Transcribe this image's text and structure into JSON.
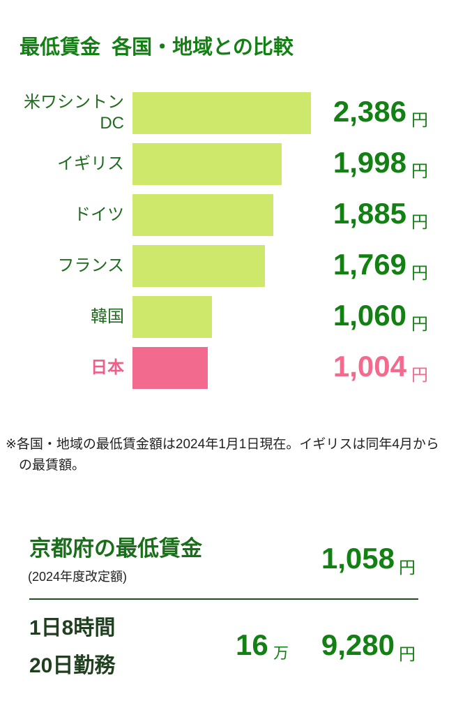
{
  "chart_data": {
    "type": "bar",
    "orientation": "horizontal",
    "title": "最低賃金  各国・地域との比較",
    "categories": [
      "米ワシントン\nDC",
      "イギリス",
      "ドイツ",
      "フランス",
      "韓国",
      "日本"
    ],
    "values": [
      2386,
      1998,
      1885,
      1769,
      1060,
      1004
    ],
    "value_labels": [
      "2,386",
      "1,998",
      "1,885",
      "1,769",
      "1,060",
      "1,004"
    ],
    "unit": "円",
    "colors": [
      "#cde86a",
      "#cde86a",
      "#cde86a",
      "#cde86a",
      "#cde86a",
      "#f26a8d"
    ],
    "label_colors": [
      "#1f6b1f",
      "#1f6b1f",
      "#1f6b1f",
      "#1f6b1f",
      "#1f6b1f",
      "#ee5f88"
    ],
    "value_colors": [
      "#128012",
      "#128012",
      "#128012",
      "#128012",
      "#128012",
      "#f26a8d"
    ],
    "xlim": [
      0,
      2386
    ],
    "note": "※各国・地域の最低賃金額は2024年1月1日現在。イギリスは同年4月からの最賃額。"
  },
  "kyoto": {
    "title": "京都府の最低賃金",
    "subtitle": "(2024年度改定額)",
    "value": "1,058",
    "unit": "円"
  },
  "monthly": {
    "label": "1日8時間\n20日勤務",
    "man_value": "16",
    "man_unit": "万",
    "value": "9,280",
    "unit": "円"
  }
}
